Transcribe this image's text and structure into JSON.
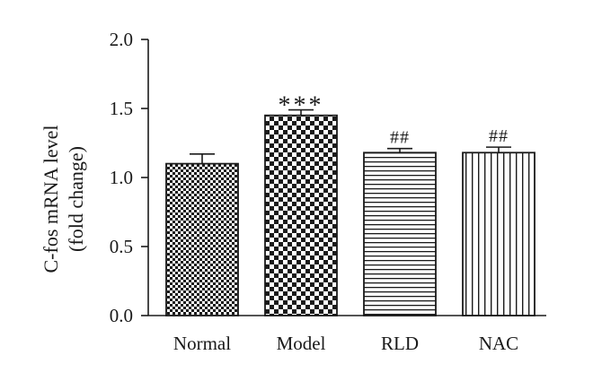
{
  "chart_data": {
    "type": "bar",
    "categories": [
      "Normal",
      "Model",
      "RLD",
      "NAC"
    ],
    "values": [
      1.1,
      1.45,
      1.18,
      1.18
    ],
    "errors": [
      0.07,
      0.04,
      0.03,
      0.04
    ],
    "annotations": [
      "",
      "***",
      "##",
      "##"
    ],
    "patterns": [
      "checker-small",
      "checker-large",
      "horizontal-lines",
      "vertical-lines"
    ],
    "ylabel_line1": "C-fos mRNA level",
    "ylabel_line2": "(fold change)",
    "xlabel": "",
    "ylim": [
      0,
      2.0
    ],
    "yticks": [
      "0.0",
      "0.5",
      "1.0",
      "1.5",
      "2.0"
    ],
    "ytick_values": [
      0,
      0.5,
      1.0,
      1.5,
      2.0
    ],
    "colors": {
      "ink": "#1a1a1a",
      "background": "#ffffff"
    }
  }
}
